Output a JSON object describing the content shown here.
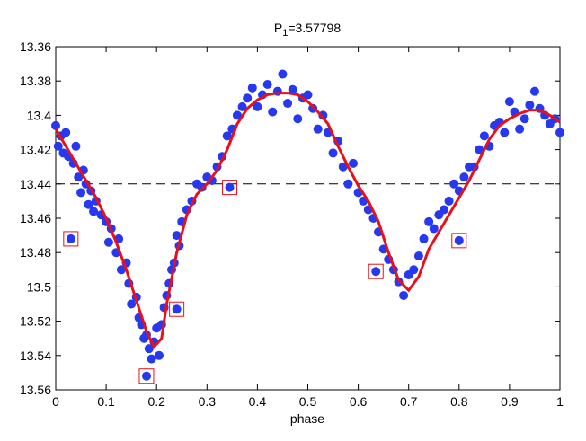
{
  "chart_data": {
    "type": "scatter",
    "title": {
      "text": "P",
      "subscript": "1",
      "suffix": "=3.57798"
    },
    "x_label": "phase",
    "xlim": [
      0,
      1
    ],
    "ylim": [
      13.36,
      13.56
    ],
    "y_inverted": true,
    "xticks": [
      0,
      0.1,
      0.2,
      0.3,
      0.4,
      0.5,
      0.6,
      0.7,
      0.8,
      0.9,
      1
    ],
    "yticks": [
      13.36,
      13.38,
      13.4,
      13.42,
      13.44,
      13.46,
      13.48,
      13.5,
      13.52,
      13.54,
      13.56
    ],
    "reference_line": 13.44,
    "series": [
      {
        "name": "points",
        "color": "#2638f0",
        "x": [
          0,
          0.005,
          0.01,
          0.015,
          0.02,
          0.025,
          0.035,
          0.04,
          0.045,
          0.05,
          0.055,
          0.06,
          0.065,
          0.07,
          0.075,
          0.08,
          0.09,
          0.1,
          0.105,
          0.11,
          0.12,
          0.125,
          0.13,
          0.14,
          0.145,
          0.15,
          0.16,
          0.165,
          0.17,
          0.175,
          0.18,
          0.185,
          0.19,
          0.195,
          0.2,
          0.205,
          0.21,
          0.215,
          0.22,
          0.225,
          0.23,
          0.235,
          0.24,
          0.245,
          0.25,
          0.26,
          0.27,
          0.28,
          0.29,
          0.3,
          0.31,
          0.32,
          0.33,
          0.34,
          0.35,
          0.36,
          0.37,
          0.38,
          0.39,
          0.4,
          0.41,
          0.42,
          0.43,
          0.44,
          0.45,
          0.46,
          0.47,
          0.48,
          0.49,
          0.5,
          0.51,
          0.52,
          0.53,
          0.54,
          0.55,
          0.56,
          0.57,
          0.58,
          0.59,
          0.6,
          0.61,
          0.62,
          0.63,
          0.64,
          0.65,
          0.66,
          0.67,
          0.68,
          0.69,
          0.7,
          0.71,
          0.72,
          0.73,
          0.74,
          0.75,
          0.76,
          0.77,
          0.78,
          0.79,
          0.8,
          0.81,
          0.82,
          0.83,
          0.84,
          0.85,
          0.86,
          0.87,
          0.88,
          0.89,
          0.9,
          0.91,
          0.92,
          0.93,
          0.94,
          0.95,
          0.96,
          0.97,
          0.98,
          0.99,
          1
        ],
        "values": [
          13.406,
          13.418,
          13.412,
          13.422,
          13.41,
          13.424,
          13.428,
          13.418,
          13.436,
          13.445,
          13.432,
          13.44,
          13.452,
          13.444,
          13.456,
          13.45,
          13.458,
          13.462,
          13.474,
          13.466,
          13.48,
          13.472,
          13.49,
          13.486,
          13.498,
          13.51,
          13.506,
          13.518,
          13.522,
          13.53,
          13.528,
          13.536,
          13.542,
          13.532,
          13.524,
          13.54,
          13.522,
          13.512,
          13.505,
          13.498,
          13.49,
          13.486,
          13.47,
          13.476,
          13.462,
          13.455,
          13.45,
          13.44,
          13.442,
          13.436,
          13.438,
          13.43,
          13.424,
          13.412,
          13.408,
          13.4,
          13.395,
          13.39,
          13.384,
          13.395,
          13.388,
          13.382,
          13.398,
          13.386,
          13.376,
          13.393,
          13.385,
          13.402,
          13.39,
          13.388,
          13.396,
          13.408,
          13.4,
          13.41,
          13.422,
          13.415,
          13.43,
          13.44,
          13.428,
          13.445,
          13.45,
          13.455,
          13.46,
          13.468,
          13.478,
          13.484,
          13.49,
          13.497,
          13.505,
          13.493,
          13.49,
          13.482,
          13.472,
          13.462,
          13.466,
          13.458,
          13.455,
          13.45,
          13.44,
          13.444,
          13.436,
          13.43,
          13.43,
          13.42,
          13.412,
          13.418,
          13.406,
          13.404,
          13.41,
          13.392,
          13.398,
          13.408,
          13.402,
          13.394,
          13.386,
          13.396,
          13.4,
          13.405,
          13.402,
          13.41
        ]
      },
      {
        "name": "outliers",
        "color": "#2638f0",
        "box_color": "#e8101b",
        "x": [
          0.03,
          0.18,
          0.24,
          0.345,
          0.635,
          0.8
        ],
        "values": [
          13.472,
          13.552,
          13.513,
          13.442,
          13.491,
          13.473
        ]
      },
      {
        "name": "fit",
        "type": "line",
        "color": "#e8101b",
        "x": [
          0,
          0.02,
          0.04,
          0.06,
          0.08,
          0.1,
          0.12,
          0.14,
          0.16,
          0.18,
          0.195,
          0.21,
          0.22,
          0.24,
          0.26,
          0.28,
          0.3,
          0.32,
          0.34,
          0.36,
          0.38,
          0.4,
          0.42,
          0.44,
          0.46,
          0.48,
          0.5,
          0.52,
          0.54,
          0.56,
          0.58,
          0.6,
          0.62,
          0.64,
          0.66,
          0.68,
          0.7,
          0.72,
          0.74,
          0.76,
          0.78,
          0.8,
          0.82,
          0.84,
          0.86,
          0.88,
          0.9,
          0.92,
          0.94,
          0.96,
          0.98,
          1
        ],
        "values": [
          13.408,
          13.418,
          13.428,
          13.438,
          13.448,
          13.46,
          13.474,
          13.49,
          13.508,
          13.526,
          13.535,
          13.53,
          13.51,
          13.48,
          13.458,
          13.446,
          13.44,
          13.432,
          13.42,
          13.405,
          13.396,
          13.391,
          13.388,
          13.387,
          13.387,
          13.388,
          13.392,
          13.398,
          13.405,
          13.418,
          13.43,
          13.441,
          13.45,
          13.462,
          13.48,
          13.496,
          13.502,
          13.494,
          13.478,
          13.468,
          13.458,
          13.448,
          13.438,
          13.426,
          13.414,
          13.406,
          13.402,
          13.399,
          13.397,
          13.397,
          13.4,
          13.404
        ]
      }
    ]
  }
}
